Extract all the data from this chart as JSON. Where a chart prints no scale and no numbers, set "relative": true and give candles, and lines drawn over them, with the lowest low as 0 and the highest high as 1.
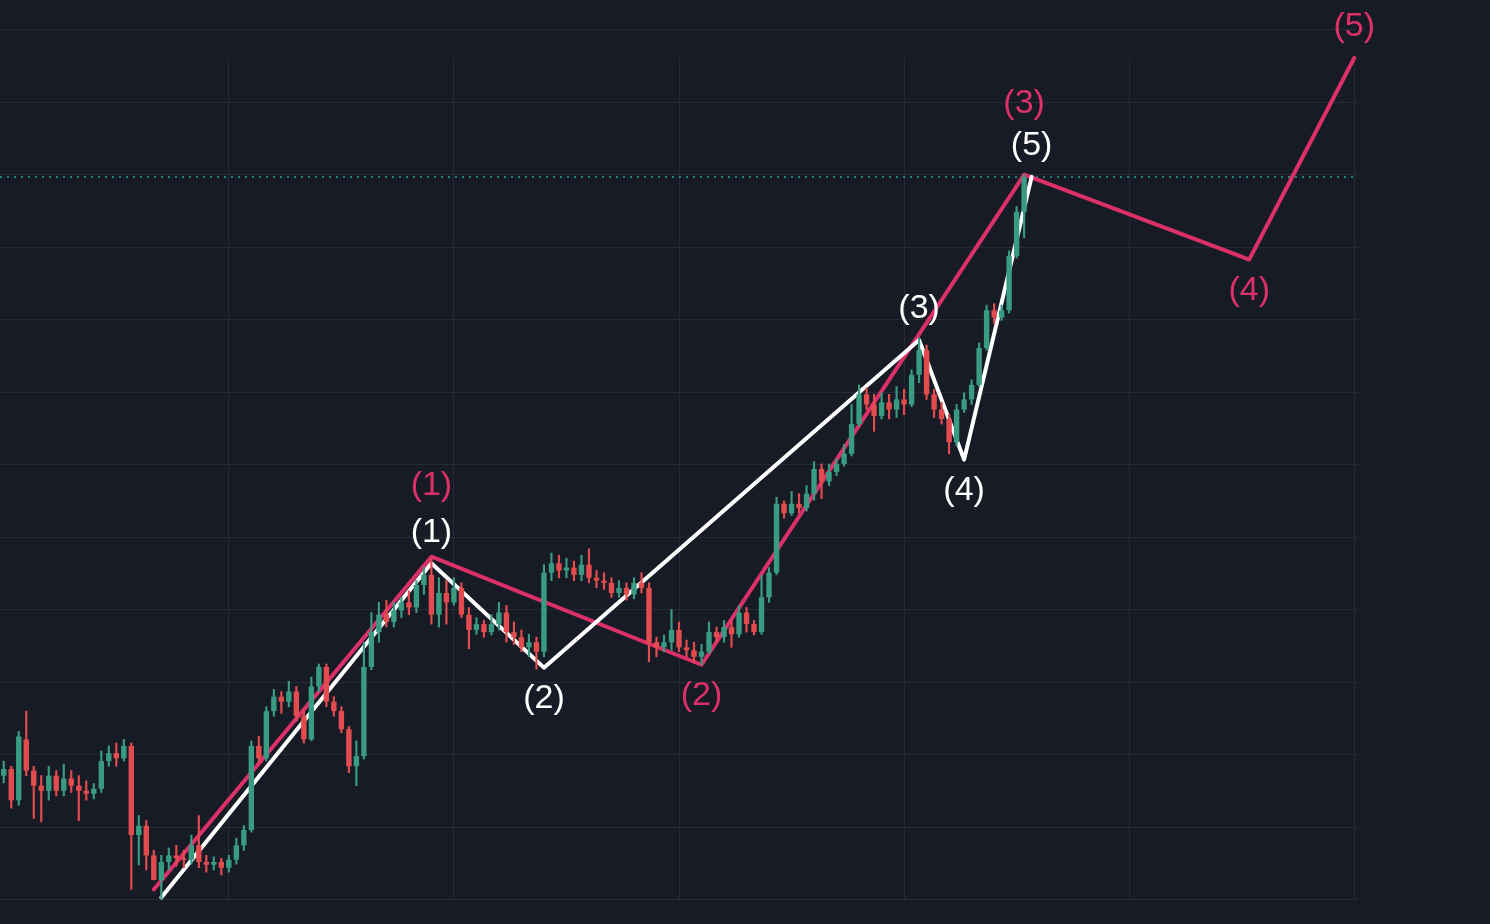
{
  "chart_data": {
    "type": "candlestick",
    "relative": true,
    "grid": true,
    "categories": [
      null,
      null,
      null,
      null,
      null,
      null,
      null,
      null,
      null,
      null,
      null,
      null,
      null,
      null,
      null,
      null,
      null,
      null,
      null,
      null,
      null,
      null,
      null,
      null,
      null,
      null,
      null,
      null,
      null,
      null,
      null,
      null,
      null,
      null,
      null,
      null,
      null,
      null,
      null,
      null,
      null,
      null,
      null,
      null,
      null,
      null,
      null,
      null,
      null,
      null,
      null,
      null,
      null,
      null,
      null,
      null,
      null,
      null,
      null,
      null,
      null,
      null,
      null,
      null,
      null,
      null,
      null,
      null,
      null,
      null,
      null,
      null,
      null,
      null,
      null,
      null,
      null,
      null,
      null,
      null,
      null,
      null,
      null,
      null,
      null,
      null,
      null,
      null,
      null,
      null,
      null,
      null,
      null,
      null,
      null,
      null,
      null,
      null,
      null,
      null,
      null,
      null,
      null,
      null,
      null,
      null,
      null,
      null,
      null,
      null,
      null,
      null,
      null,
      null,
      null,
      null,
      null,
      null,
      null,
      null,
      null,
      null,
      null,
      null,
      null,
      null,
      null,
      null,
      null,
      null,
      null,
      null,
      null,
      null,
      null,
      null,
      null,
      null,
      null,
      null,
      null,
      null,
      null,
      null,
      null,
      null,
      null,
      null,
      null,
      null,
      null,
      null,
      null,
      null,
      null,
      null,
      null,
      null,
      null,
      null,
      null,
      null,
      null,
      null,
      null,
      null,
      null,
      null,
      null,
      null,
      null,
      null,
      null,
      null,
      null,
      null,
      null,
      null,
      null,
      null,
      null
    ],
    "ohlc": [
      [
        0.171,
        0.191,
        0.161,
        0.18
      ],
      [
        0.18,
        0.184,
        0.126,
        0.137
      ],
      [
        0.137,
        0.232,
        0.13,
        0.225
      ],
      [
        0.221,
        0.26,
        0.171,
        0.178
      ],
      [
        0.178,
        0.184,
        0.112,
        0.157
      ],
      [
        0.157,
        0.171,
        0.107,
        0.15
      ],
      [
        0.15,
        0.184,
        0.137,
        0.171
      ],
      [
        0.171,
        0.178,
        0.143,
        0.15
      ],
      [
        0.15,
        0.187,
        0.143,
        0.167
      ],
      [
        0.167,
        0.178,
        0.148,
        0.157
      ],
      [
        0.157,
        0.171,
        0.109,
        0.15
      ],
      [
        0.15,
        0.164,
        0.137,
        0.146
      ],
      [
        0.146,
        0.16,
        0.139,
        0.153
      ],
      [
        0.153,
        0.205,
        0.148,
        0.191
      ],
      [
        0.191,
        0.212,
        0.184,
        0.202
      ],
      [
        0.202,
        0.216,
        0.184,
        0.195
      ],
      [
        0.195,
        0.221,
        0.191,
        0.212
      ],
      [
        0.212,
        0.216,
        0.014,
        0.089
      ],
      [
        0.089,
        0.116,
        0.048,
        0.102
      ],
      [
        0.102,
        0.109,
        0.041,
        0.061
      ],
      [
        0.061,
        0.068,
        0.027,
        0.027
      ],
      [
        0.027,
        0.061,
        0,
        0.052
      ],
      [
        0.052,
        0.071,
        0.041,
        0.061
      ],
      [
        0.061,
        0.075,
        0.046,
        0.057
      ],
      [
        0.057,
        0.068,
        0.044,
        0.055
      ],
      [
        0.055,
        0.089,
        0.049,
        0.075
      ],
      [
        0.075,
        0.116,
        0.044,
        0.052
      ],
      [
        0.052,
        0.061,
        0.038,
        0.048
      ],
      [
        0.048,
        0.059,
        0.041,
        0.052
      ],
      [
        0.052,
        0.057,
        0.034,
        0.044
      ],
      [
        0.044,
        0.061,
        0.038,
        0.055
      ],
      [
        0.055,
        0.085,
        0.049,
        0.075
      ],
      [
        0.075,
        0.102,
        0.068,
        0.096
      ],
      [
        0.096,
        0.219,
        0.093,
        0.212
      ],
      [
        0.212,
        0.225,
        0.189,
        0.195
      ],
      [
        0.195,
        0.266,
        0.191,
        0.26
      ],
      [
        0.26,
        0.29,
        0.253,
        0.28
      ],
      [
        0.28,
        0.287,
        0.257,
        0.273
      ],
      [
        0.273,
        0.301,
        0.266,
        0.287
      ],
      [
        0.287,
        0.294,
        0.246,
        0.253
      ],
      [
        0.253,
        0.26,
        0.216,
        0.221
      ],
      [
        0.221,
        0.307,
        0.219,
        0.294
      ],
      [
        0.294,
        0.325,
        0.287,
        0.321
      ],
      [
        0.321,
        0.325,
        0.266,
        0.273
      ],
      [
        0.273,
        0.28,
        0.253,
        0.26
      ],
      [
        0.26,
        0.266,
        0.23,
        0.235
      ],
      [
        0.235,
        0.239,
        0.175,
        0.184
      ],
      [
        0.184,
        0.219,
        0.157,
        0.198
      ],
      [
        0.198,
        0.355,
        0.194,
        0.321
      ],
      [
        0.321,
        0.396,
        0.317,
        0.369
      ],
      [
        0.369,
        0.41,
        0.355,
        0.393
      ],
      [
        0.393,
        0.413,
        0.376,
        0.383
      ],
      [
        0.383,
        0.41,
        0.376,
        0.399
      ],
      [
        0.399,
        0.417,
        0.389,
        0.41
      ],
      [
        0.41,
        0.426,
        0.393,
        0.403
      ],
      [
        0.403,
        0.44,
        0.396,
        0.434
      ],
      [
        0.434,
        0.458,
        0.421,
        0.448
      ],
      [
        0.448,
        0.47,
        0.38,
        0.393
      ],
      [
        0.393,
        0.444,
        0.376,
        0.423
      ],
      [
        0.423,
        0.44,
        0.38,
        0.41
      ],
      [
        0.41,
        0.444,
        0.406,
        0.43
      ],
      [
        0.43,
        0.437,
        0.389,
        0.393
      ],
      [
        0.393,
        0.403,
        0.346,
        0.372
      ],
      [
        0.372,
        0.389,
        0.366,
        0.38
      ],
      [
        0.38,
        0.385,
        0.362,
        0.369
      ],
      [
        0.369,
        0.393,
        0.365,
        0.38
      ],
      [
        0.38,
        0.41,
        0.372,
        0.396
      ],
      [
        0.396,
        0.406,
        0.355,
        0.369
      ],
      [
        0.369,
        0.383,
        0.352,
        0.362
      ],
      [
        0.362,
        0.372,
        0.342,
        0.348
      ],
      [
        0.348,
        0.366,
        0.335,
        0.355
      ],
      [
        0.355,
        0.362,
        0.318,
        0.342
      ],
      [
        0.342,
        0.462,
        0.335,
        0.451
      ],
      [
        0.451,
        0.478,
        0.44,
        0.464
      ],
      [
        0.464,
        0.475,
        0.444,
        0.454
      ],
      [
        0.454,
        0.471,
        0.444,
        0.458
      ],
      [
        0.458,
        0.467,
        0.44,
        0.448
      ],
      [
        0.448,
        0.475,
        0.44,
        0.462
      ],
      [
        0.462,
        0.484,
        0.437,
        0.444
      ],
      [
        0.444,
        0.454,
        0.43,
        0.44
      ],
      [
        0.44,
        0.451,
        0.428,
        0.437
      ],
      [
        0.437,
        0.444,
        0.417,
        0.423
      ],
      [
        0.423,
        0.44,
        0.417,
        0.43
      ],
      [
        0.43,
        0.437,
        0.413,
        0.421
      ],
      [
        0.421,
        0.444,
        0.415,
        0.437
      ],
      [
        0.437,
        0.451,
        0.423,
        0.43
      ],
      [
        0.43,
        0.437,
        0.328,
        0.355
      ],
      [
        0.355,
        0.362,
        0.335,
        0.348
      ],
      [
        0.348,
        0.365,
        0.342,
        0.355
      ],
      [
        0.355,
        0.4,
        0.344,
        0.372
      ],
      [
        0.372,
        0.383,
        0.342,
        0.348
      ],
      [
        0.348,
        0.358,
        0.335,
        0.344
      ],
      [
        0.344,
        0.355,
        0.328,
        0.335
      ],
      [
        0.335,
        0.352,
        0.324,
        0.342
      ],
      [
        0.342,
        0.383,
        0.339,
        0.369
      ],
      [
        0.369,
        0.376,
        0.355,
        0.362
      ],
      [
        0.362,
        0.385,
        0.355,
        0.376
      ],
      [
        0.376,
        0.385,
        0.348,
        0.366
      ],
      [
        0.366,
        0.406,
        0.362,
        0.396
      ],
      [
        0.396,
        0.403,
        0.369,
        0.38
      ],
      [
        0.38,
        0.385,
        0.365,
        0.369
      ],
      [
        0.369,
        0.447,
        0.366,
        0.417
      ],
      [
        0.417,
        0.458,
        0.41,
        0.451
      ],
      [
        0.451,
        0.555,
        0.448,
        0.546
      ],
      [
        0.546,
        0.55,
        0.526,
        0.533
      ],
      [
        0.533,
        0.563,
        0.53,
        0.546
      ],
      [
        0.546,
        0.56,
        0.533,
        0.54
      ],
      [
        0.54,
        0.571,
        0.536,
        0.56
      ],
      [
        0.56,
        0.604,
        0.551,
        0.594
      ],
      [
        0.594,
        0.601,
        0.553,
        0.577
      ],
      [
        0.577,
        0.601,
        0.571,
        0.59
      ],
      [
        0.59,
        0.608,
        0.585,
        0.601
      ],
      [
        0.601,
        0.628,
        0.598,
        0.615
      ],
      [
        0.615,
        0.683,
        0.612,
        0.656
      ],
      [
        0.656,
        0.71,
        0.653,
        0.697
      ],
      [
        0.697,
        0.706,
        0.676,
        0.683
      ],
      [
        0.683,
        0.697,
        0.646,
        0.667
      ],
      [
        0.667,
        0.699,
        0.663,
        0.686
      ],
      [
        0.686,
        0.697,
        0.663,
        0.676
      ],
      [
        0.676,
        0.708,
        0.665,
        0.69
      ],
      [
        0.69,
        0.704,
        0.669,
        0.683
      ],
      [
        0.683,
        0.731,
        0.68,
        0.724
      ],
      [
        0.724,
        0.775,
        0.713,
        0.758
      ],
      [
        0.758,
        0.765,
        0.69,
        0.697
      ],
      [
        0.697,
        0.704,
        0.665,
        0.676
      ],
      [
        0.676,
        0.686,
        0.656,
        0.663
      ],
      [
        0.663,
        0.669,
        0.615,
        0.631
      ],
      [
        0.631,
        0.683,
        0.626,
        0.676
      ],
      [
        0.676,
        0.699,
        0.672,
        0.69
      ],
      [
        0.69,
        0.717,
        0.683,
        0.71
      ],
      [
        0.71,
        0.768,
        0.708,
        0.761
      ],
      [
        0.761,
        0.82,
        0.758,
        0.813
      ],
      [
        0.813,
        0.822,
        0.795,
        0.803
      ],
      [
        0.803,
        0.82,
        0.799,
        0.813
      ],
      [
        0.813,
        0.895,
        0.809,
        0.888
      ],
      [
        0.888,
        0.956,
        0.885,
        0.949
      ],
      [
        0.949,
        1,
        0.913,
        0.997
      ],
      null,
      null,
      null,
      null,
      null,
      null,
      null,
      null,
      null,
      null,
      null,
      null,
      null,
      null,
      null,
      null,
      null,
      null,
      null,
      null,
      null,
      null,
      null,
      null,
      null,
      null,
      null,
      null,
      null,
      null,
      null,
      null,
      null,
      null,
      null,
      null,
      null,
      null,
      null,
      null,
      null,
      null,
      null,
      null
    ],
    "colors": [
      "#3a9b83",
      "#e34c4e",
      "#3a9b83",
      "#e34c4e",
      "#e34c4e",
      "#e34c4e",
      "#3a9b83",
      "#e34c4e",
      "#3a9b83",
      "#e34c4e",
      "#e34c4e",
      "#e34c4e",
      "#3a9b83",
      "#3a9b83",
      "#3a9b83",
      "#e34c4e",
      "#3a9b83",
      "#e34c4e",
      "#3a9b83",
      "#e34c4e",
      "#e34c4e",
      "#3a9b83",
      "#3a9b83",
      "#e34c4e",
      "#e34c4e",
      "#3a9b83",
      "#e34c4e",
      "#e34c4e",
      "#3a9b83",
      "#e34c4e",
      "#3a9b83",
      "#3a9b83",
      "#3a9b83",
      "#3a9b83",
      "#e34c4e",
      "#3a9b83",
      "#3a9b83",
      "#e34c4e",
      "#3a9b83",
      "#e34c4e",
      "#e34c4e",
      "#3a9b83",
      "#3a9b83",
      "#e34c4e",
      "#e34c4e",
      "#e34c4e",
      "#e34c4e",
      "#3a9b83",
      "#3a9b83",
      "#3a9b83",
      "#3a9b83",
      "#e34c4e",
      "#3a9b83",
      "#3a9b83",
      "#e34c4e",
      "#3a9b83",
      "#3a9b83",
      "#e34c4e",
      "#3a9b83",
      "#e34c4e",
      "#3a9b83",
      "#e34c4e",
      "#e34c4e",
      "#3a9b83",
      "#e34c4e",
      "#3a9b83",
      "#3a9b83",
      "#e34c4e",
      "#e34c4e",
      "#e34c4e",
      "#3a9b83",
      "#e34c4e",
      "#3a9b83",
      "#3a9b83",
      "#e34c4e",
      "#3a9b83",
      "#e34c4e",
      "#3a9b83",
      "#e34c4e",
      "#e34c4e",
      "#e34c4e",
      "#e34c4e",
      "#3a9b83",
      "#e34c4e",
      "#3a9b83",
      "#e34c4e",
      "#e34c4e",
      "#e34c4e",
      "#3a9b83",
      "#3a9b83",
      "#e34c4e",
      "#e34c4e",
      "#e34c4e",
      "#3a9b83",
      "#3a9b83",
      "#e34c4e",
      "#3a9b83",
      "#e34c4e",
      "#3a9b83",
      "#e34c4e",
      "#e34c4e",
      "#3a9b83",
      "#3a9b83",
      "#3a9b83",
      "#e34c4e",
      "#3a9b83",
      "#e34c4e",
      "#3a9b83",
      "#3a9b83",
      "#e34c4e",
      "#3a9b83",
      "#3a9b83",
      "#3a9b83",
      "#3a9b83",
      "#3a9b83",
      "#e34c4e",
      "#e34c4e",
      "#3a9b83",
      "#e34c4e",
      "#3a9b83",
      "#e34c4e",
      "#3a9b83",
      "#3a9b83",
      "#e34c4e",
      "#e34c4e",
      "#e34c4e",
      "#e34c4e",
      "#3a9b83",
      "#3a9b83",
      "#3a9b83",
      "#3a9b83",
      "#3a9b83",
      "#e34c4e",
      "#3a9b83",
      "#3a9b83",
      "#3a9b83",
      "#3a9b83",
      null,
      null,
      null,
      null,
      null,
      null,
      null,
      null,
      null,
      null,
      null,
      null,
      null,
      null,
      null,
      null,
      null,
      null,
      null,
      null,
      null,
      null,
      null,
      null,
      null,
      null,
      null,
      null,
      null,
      null,
      null,
      null,
      null,
      null,
      null,
      null,
      null,
      null,
      null,
      null,
      null,
      null,
      null,
      null
    ],
    "series": [
      {
        "type": "line",
        "color": "#ffffff",
        "values": [
          null,
          null,
          null,
          null,
          null,
          null,
          null,
          null,
          null,
          null,
          null,
          null,
          null,
          null,
          null,
          null,
          null,
          null,
          null,
          null,
          null,
          0.003,
          null,
          null,
          null,
          null,
          null,
          null,
          null,
          null,
          null,
          null,
          null,
          null,
          null,
          null,
          null,
          null,
          null,
          null,
          null,
          null,
          null,
          null,
          null,
          null,
          null,
          null,
          null,
          null,
          null,
          null,
          null,
          null,
          null,
          null,
          null,
          0.464,
          null,
          null,
          null,
          null,
          null,
          null,
          null,
          null,
          null,
          null,
          null,
          null,
          null,
          null,
          0.32,
          null,
          null,
          null,
          null,
          null,
          null,
          null,
          null,
          null,
          null,
          null,
          null,
          null,
          null,
          null,
          null,
          null,
          null,
          null,
          null,
          null,
          null,
          null,
          null,
          null,
          null,
          null,
          null,
          null,
          null,
          null,
          null,
          null,
          null,
          null,
          null,
          null,
          null,
          null,
          null,
          null,
          null,
          null,
          null,
          null,
          null,
          null,
          null,
          null,
          0.772,
          null,
          null,
          null,
          null,
          null,
          0.607,
          null,
          null,
          null,
          null,
          null,
          null,
          null,
          null,
          0.997,
          null,
          null,
          null,
          null,
          null,
          null,
          null,
          null,
          null,
          null,
          null,
          null,
          null,
          null,
          null,
          null,
          null,
          null,
          null,
          null,
          null,
          null,
          null,
          null,
          null,
          null,
          null,
          null,
          null,
          null,
          null,
          null,
          null,
          null,
          null,
          null,
          null,
          null,
          null,
          null,
          null,
          null,
          null
        ]
      },
      {
        "type": "line",
        "color": "#dc3068",
        "values": [
          null,
          null,
          null,
          null,
          null,
          null,
          null,
          null,
          null,
          null,
          null,
          null,
          null,
          null,
          null,
          null,
          null,
          null,
          null,
          null,
          0.014,
          null,
          null,
          null,
          null,
          null,
          null,
          null,
          null,
          null,
          null,
          null,
          null,
          null,
          null,
          null,
          null,
          null,
          null,
          null,
          null,
          null,
          null,
          null,
          null,
          null,
          null,
          null,
          null,
          null,
          null,
          null,
          null,
          null,
          null,
          null,
          null,
          0.473,
          null,
          null,
          null,
          null,
          null,
          null,
          null,
          null,
          null,
          null,
          null,
          null,
          null,
          null,
          null,
          null,
          null,
          null,
          null,
          null,
          null,
          null,
          null,
          null,
          null,
          null,
          null,
          null,
          null,
          null,
          null,
          null,
          null,
          null,
          null,
          0.324,
          null,
          null,
          null,
          null,
          null,
          null,
          null,
          null,
          null,
          null,
          null,
          null,
          null,
          null,
          null,
          null,
          null,
          null,
          null,
          null,
          null,
          null,
          null,
          null,
          null,
          null,
          null,
          null,
          null,
          null,
          null,
          null,
          null,
          null,
          null,
          null,
          null,
          null,
          null,
          null,
          null,
          null,
          1,
          null,
          null,
          null,
          null,
          null,
          null,
          null,
          null,
          null,
          null,
          null,
          null,
          null,
          null,
          null,
          null,
          null,
          null,
          null,
          null,
          null,
          null,
          null,
          null,
          null,
          null,
          null,
          null,
          null,
          0.883,
          null,
          null,
          null,
          null,
          null,
          null,
          null,
          null,
          null,
          null,
          null,
          null,
          null,
          1.161
        ]
      }
    ],
    "annotations": [
      {
        "text": "(1)",
        "y": 0.464
      },
      {
        "text": "(2)",
        "y": 0.32
      },
      {
        "text": "(3)",
        "y": 0.772
      },
      {
        "text": "(4)",
        "y": 0.607
      },
      {
        "text": "(5)",
        "y": 0.997
      },
      {
        "text": "(1)",
        "y": 0.473
      },
      {
        "text": "(2)",
        "y": 0.324
      },
      {
        "text": "(3)",
        "y": 1
      },
      {
        "text": "(4)",
        "y": 0.883
      },
      {
        "text": "(5)",
        "y": 1.161
      }
    ],
    "ref_lines": [
      {
        "axis": "y",
        "value": 0.997,
        "color": "#26a69a",
        "line_style": "dotted"
      }
    ]
  }
}
